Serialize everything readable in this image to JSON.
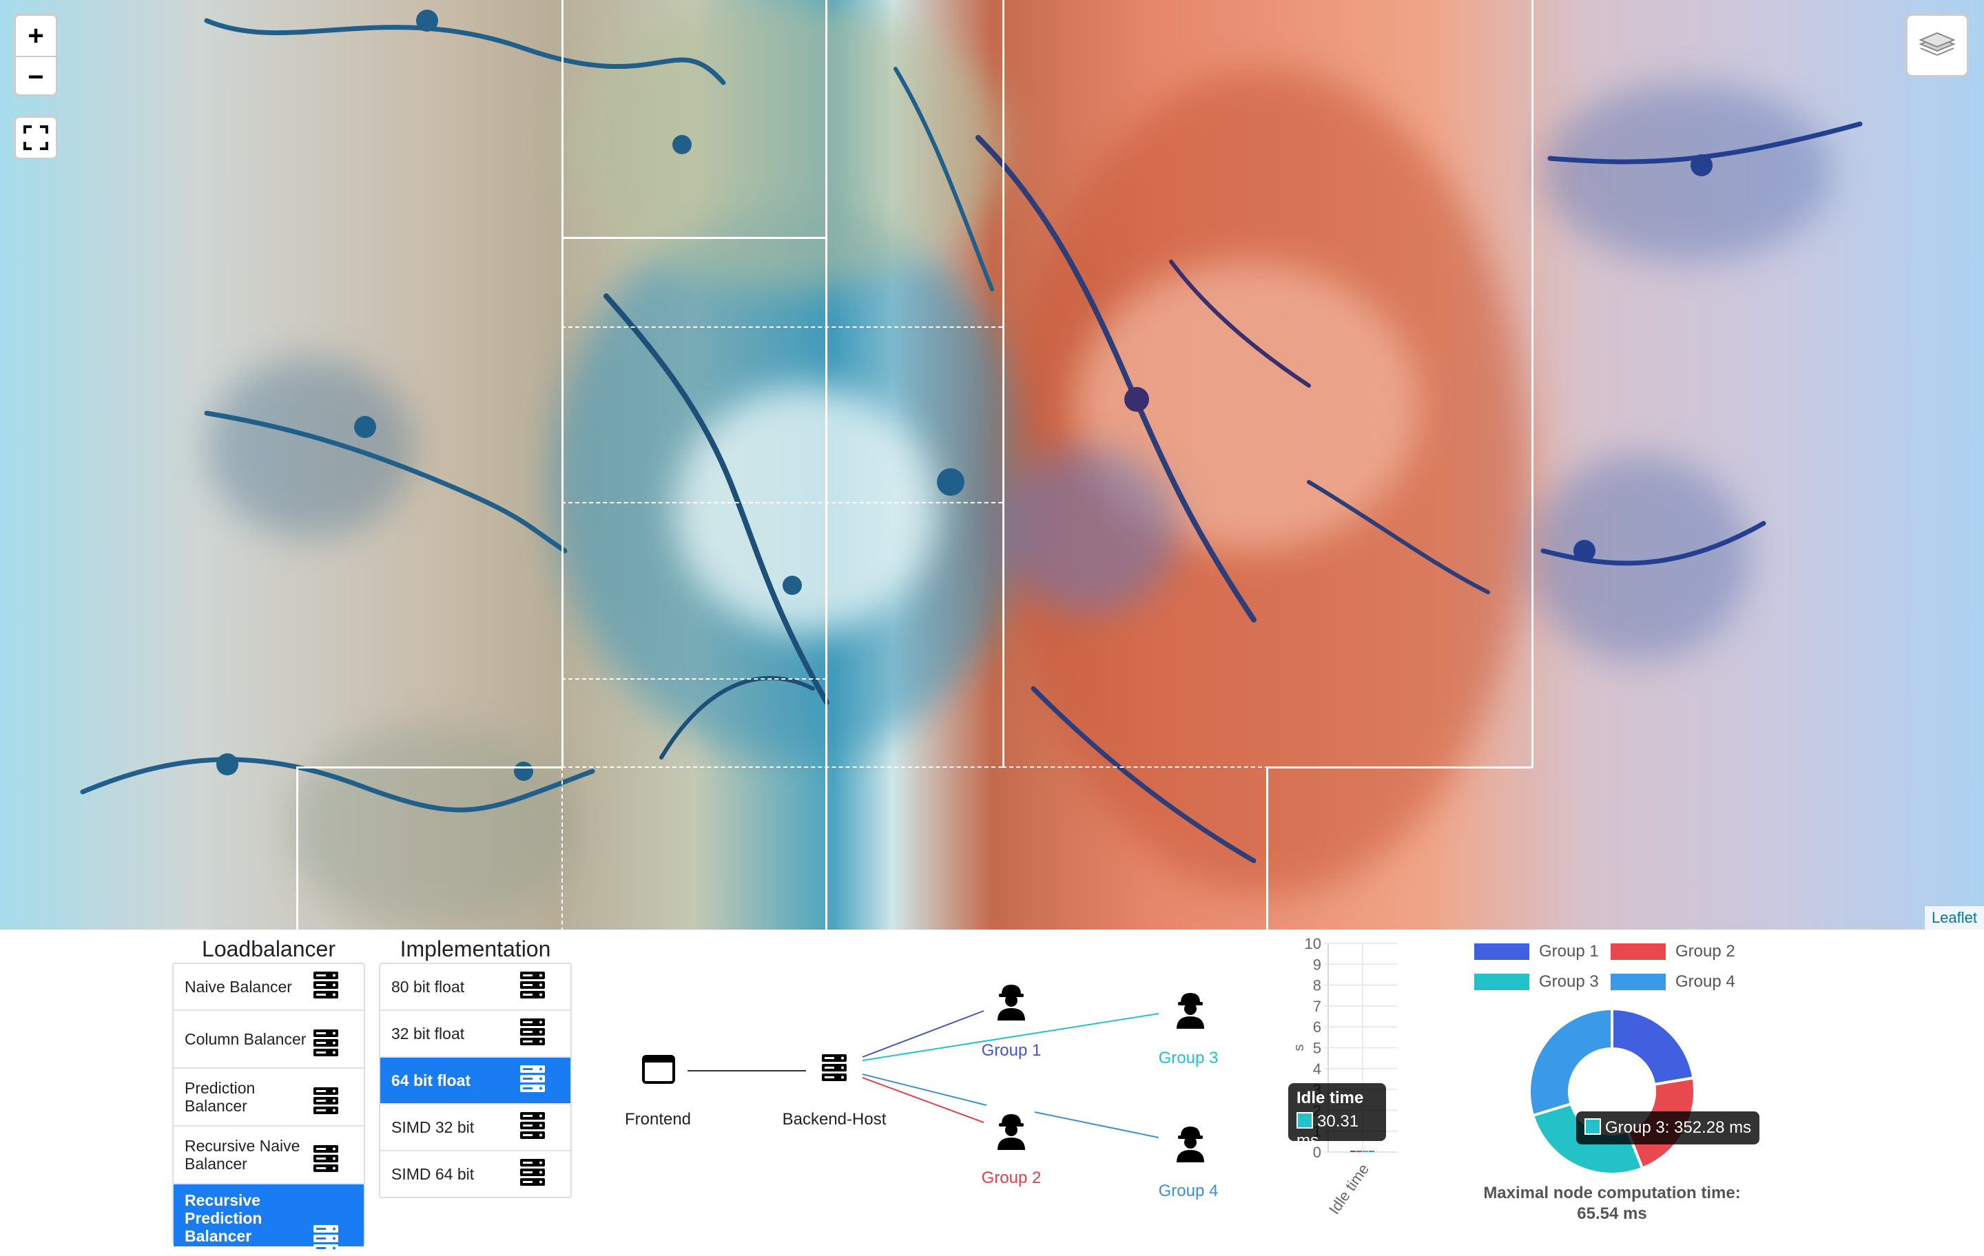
{
  "map": {
    "zoom_in_label": "+",
    "zoom_out_label": "−",
    "attribution": "Leaflet"
  },
  "loadbalancer": {
    "title": "Loadbalancer",
    "items": [
      {
        "label": "Naive Balancer",
        "active": false
      },
      {
        "label": "Column Balancer",
        "active": false
      },
      {
        "label": "Prediction Balancer",
        "active": false
      },
      {
        "label": "Recursive Naive Balancer",
        "active": false
      },
      {
        "label": "Recursive Prediction Balancer",
        "active": true
      }
    ]
  },
  "implementation": {
    "title": "Implementation",
    "items": [
      {
        "label": "80 bit float",
        "active": false
      },
      {
        "label": "32 bit float",
        "active": false
      },
      {
        "label": "64 bit float",
        "active": true
      },
      {
        "label": "SIMD 32 bit",
        "active": false
      },
      {
        "label": "SIMD 64 bit",
        "active": false
      }
    ]
  },
  "network": {
    "frontend": "Frontend",
    "backend": "Backend-Host",
    "groups": [
      "Group 1",
      "Group 2",
      "Group 3",
      "Group 4"
    ],
    "group_colors": [
      "#4455cc",
      "#e0404a",
      "#22c2c8",
      "#3a8fd0"
    ]
  },
  "chart_data": [
    {
      "type": "bar",
      "categories": [
        "Idle time"
      ],
      "series": [
        {
          "name": "Group 1",
          "values": [
            0.03
          ]
        },
        {
          "name": "Group 2",
          "values": [
            0.03
          ]
        },
        {
          "name": "Group 3",
          "values": [
            0.03
          ]
        },
        {
          "name": "Group 4",
          "values": [
            0.03
          ]
        }
      ],
      "ylabel": "s",
      "ylim": [
        0,
        10
      ],
      "yticks": [
        "10",
        "9",
        "8",
        "7",
        "6",
        "5",
        "4",
        "3",
        "2",
        "1",
        "0"
      ],
      "tooltip": {
        "title": "Idle time",
        "value": "30.31 ms",
        "color": "#22c2c8"
      }
    },
    {
      "type": "pie",
      "donut": true,
      "labels": [
        "Group 1",
        "Group 2",
        "Group 3",
        "Group 4"
      ],
      "values": [
        300,
        290,
        352.28,
        398
      ],
      "colors": [
        "#4060e0",
        "#e8494f",
        "#22c2c8",
        "#3a9ae8"
      ],
      "legend_position": "top",
      "tooltip": "Group 3: 352.28 ms",
      "footer": {
        "label": "Maximal node computation time:",
        "value": "65.54 ms"
      }
    }
  ]
}
